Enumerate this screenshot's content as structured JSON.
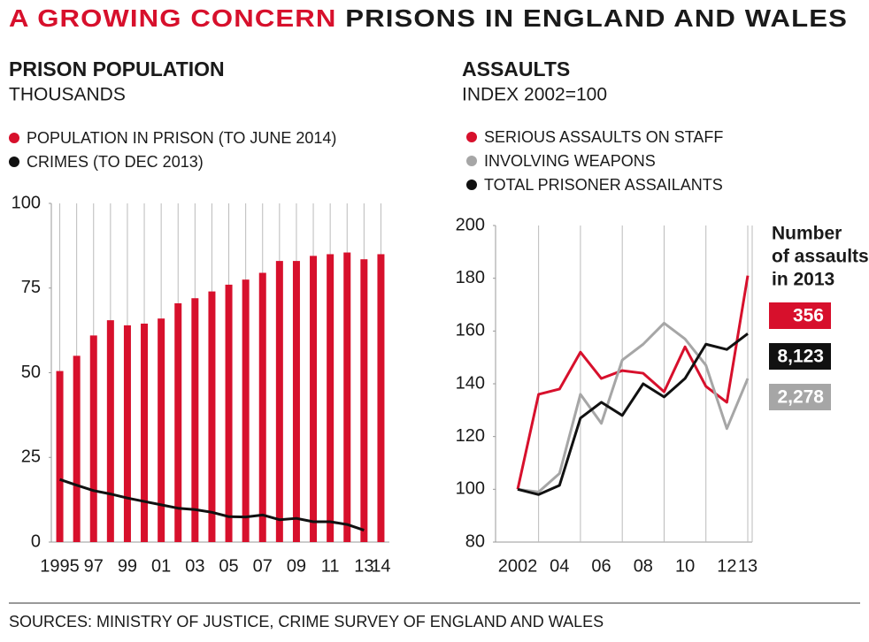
{
  "title_highlight": "A GROWING CONCERN",
  "title": "PRISONS IN ENGLAND AND WALES",
  "source": "SOURCES: MINISTRY OF JUSTICE, CRIME SURVEY OF ENGLAND AND WALES",
  "chart_data": [
    {
      "type": "bar",
      "title": "PRISON POPULATION",
      "subtitle": "THOUSANDS",
      "categories": [
        "1995",
        null,
        "97",
        null,
        "99",
        null,
        "01",
        null,
        "03",
        null,
        "05",
        null,
        "07",
        null,
        "09",
        null,
        "11",
        null,
        "13",
        "14"
      ],
      "series": [
        {
          "name": "POPULATION IN PRISON (TO JUNE 2014)",
          "color": "#d7102c",
          "values": [
            50.5,
            55,
            61,
            65.5,
            64,
            64.5,
            66,
            70.5,
            72,
            74,
            76,
            77.5,
            79.5,
            83,
            83,
            84.5,
            85,
            85.5,
            83.5,
            85
          ]
        },
        {
          "name": "CRIMES (TO DEC 2013)",
          "color": "#111111",
          "type": "line",
          "values": [
            18.5,
            16.8,
            15.2,
            14.2,
            13,
            12,
            11,
            10,
            9.6,
            8.8,
            7.5,
            7.4,
            8,
            6.6,
            7,
            6,
            6,
            5.2,
            3.5,
            null
          ]
        }
      ],
      "ylim": [
        0,
        100
      ],
      "yticks": [
        0,
        25,
        50,
        75,
        100
      ]
    },
    {
      "type": "line",
      "title": "ASSAULTS",
      "subtitle": "INDEX 2002=100",
      "categories": [
        "2002",
        null,
        "04",
        null,
        "06",
        null,
        "08",
        null,
        "10",
        null,
        "12",
        "13"
      ],
      "series": [
        {
          "name": "SERIOUS ASSAULTS ON STAFF",
          "color": "#d7102c",
          "count_2013": 356,
          "values": [
            100,
            136,
            138,
            152,
            142,
            145,
            144,
            137,
            154,
            139,
            133,
            181
          ]
        },
        {
          "name": "INVOLVING WEAPONS",
          "color": "#a6a6a6",
          "count_2013": {
            "value": 2278,
            "label": "2,278"
          },
          "values": [
            100,
            99,
            106,
            136,
            125,
            149,
            155,
            163,
            157,
            147,
            123,
            142
          ]
        },
        {
          "name": "TOTAL PRISONER ASSAILANTS",
          "color": "#111111",
          "count_2013": {
            "value": 8123,
            "label": "8,123"
          },
          "values": [
            100,
            98,
            101.5,
            127,
            133,
            128,
            140,
            135,
            142,
            155,
            153,
            159
          ]
        }
      ],
      "annotation": [
        "Number",
        "of assaults",
        "in 2013"
      ],
      "ylim": [
        80,
        200
      ],
      "yticks": [
        80,
        100,
        120,
        140,
        160,
        180,
        200
      ]
    }
  ]
}
